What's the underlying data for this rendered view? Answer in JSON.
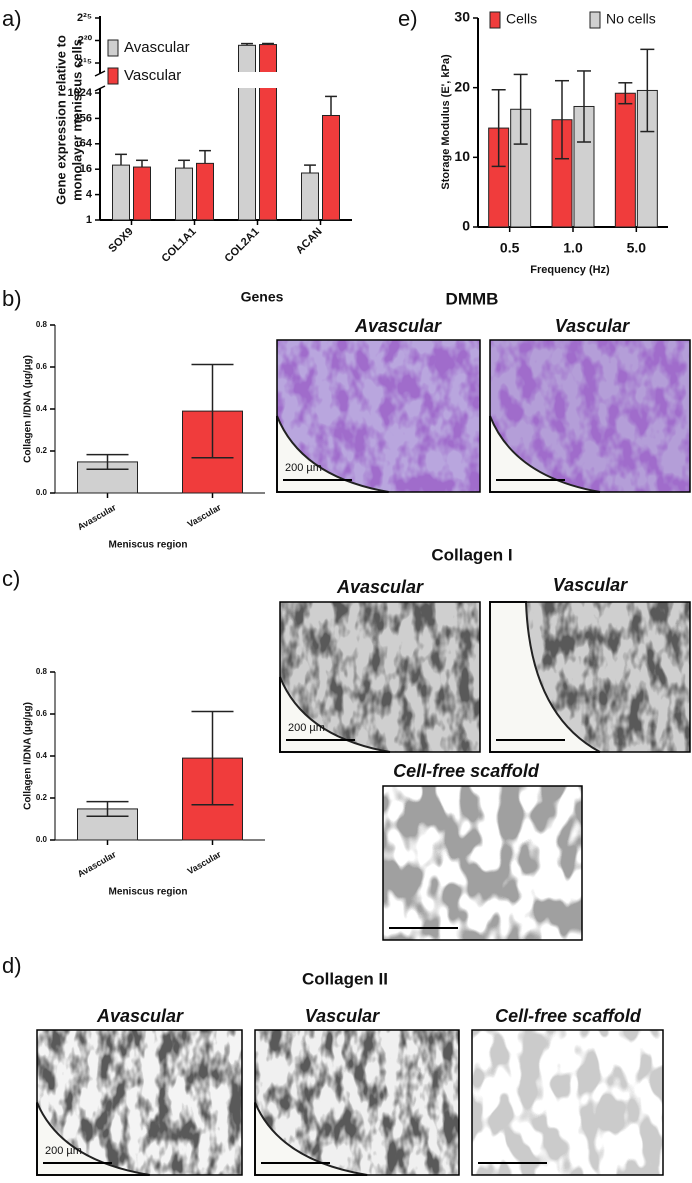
{
  "chart_data": [
    {
      "type": "bar",
      "panel": "a)",
      "y_label": [
        "Gene expression relative to",
        "monolayer meniscus cells"
      ],
      "x_label": "Genes",
      "categories": [
        "SOX9",
        "COL1A1",
        "COL2A1",
        "ACAN"
      ],
      "log_base": 2,
      "ylim": [
        1,
        33554432
      ],
      "axis_break": [
        1024,
        32768
      ],
      "yticks": [
        1,
        4,
        16,
        64,
        256,
        1024,
        {
          "value": 32768,
          "label": "2¹⁵"
        },
        {
          "value": 1048576,
          "label": "2²⁰"
        },
        {
          "value": 33554432,
          "label": "2²⁵"
        }
      ],
      "legend": "upper left",
      "series": [
        {
          "name": "Avascular",
          "color": "#d0d0d0",
          "values": [
            20,
            17,
            500000,
            13
          ],
          "errors": [
            16,
            9,
            150000,
            7
          ]
        },
        {
          "name": "Vascular",
          "color": "#f03c3c",
          "values": [
            18,
            22,
            560000,
            300
          ],
          "errors": [
            8,
            22,
            100000,
            550
          ]
        }
      ]
    },
    {
      "type": "bar",
      "panel": "e)",
      "y_label": "Storage Modulus (E', kPa)",
      "x_label": "Frequency (Hz)",
      "categories": [
        "0.5",
        "1.0",
        "5.0"
      ],
      "ylim": [
        0,
        30
      ],
      "yticks": [
        0,
        10,
        20,
        30
      ],
      "legend": "top",
      "series": [
        {
          "name": "Cells",
          "color": "#f03c3c",
          "values": [
            14.2,
            15.4,
            19.2
          ],
          "errors": [
            5.5,
            5.6,
            1.5
          ]
        },
        {
          "name": "No cells",
          "color": "#d0d0d0",
          "values": [
            16.9,
            17.3,
            19.6
          ],
          "errors": [
            5.0,
            5.1,
            5.9
          ]
        }
      ]
    },
    {
      "type": "bar",
      "panel": "b)",
      "y_label": "Collagen I/DNA (µg/µg)",
      "x_label": "Meniscus region",
      "categories": [
        "Avascular",
        "Vascular"
      ],
      "values": [
        0.148,
        0.39
      ],
      "errors": [
        0.035,
        0.222
      ],
      "colors": [
        "#d0d0d0",
        "#f03c3c"
      ],
      "ylim": [
        0,
        0.8
      ],
      "yticks": [
        {
          "value": 0,
          "label": "0.0"
        },
        0.2,
        0.4,
        0.6,
        0.8
      ]
    },
    {
      "type": "bar",
      "panel": "c)",
      "y_label": "Collagen I/DNA (µg/µg)",
      "x_label": "Meniscus region",
      "categories": [
        "Avascular",
        "Vascular"
      ],
      "values": [
        0.148,
        0.39
      ],
      "errors": [
        0.035,
        0.222
      ],
      "colors": [
        "#d0d0d0",
        "#f03c3c"
      ],
      "ylim": [
        0,
        0.8
      ],
      "yticks": [
        {
          "value": 0,
          "label": "0.0"
        },
        0.2,
        0.4,
        0.6,
        0.8
      ]
    }
  ],
  "micrographs": {
    "b": {
      "title": "DMMB",
      "labels": [
        "Avascular",
        "Vascular"
      ],
      "scale": "200 µm"
    },
    "c": {
      "title": "Collagen I",
      "labels": [
        "Avascular",
        "Vascular",
        "Cell-free scaffold"
      ],
      "scale": "200 µm"
    },
    "d": {
      "panel": "d)",
      "title": "Collagen II",
      "labels": [
        "Avascular",
        "Vascular",
        "Cell-free scaffold"
      ],
      "scale": "200 µm"
    }
  }
}
